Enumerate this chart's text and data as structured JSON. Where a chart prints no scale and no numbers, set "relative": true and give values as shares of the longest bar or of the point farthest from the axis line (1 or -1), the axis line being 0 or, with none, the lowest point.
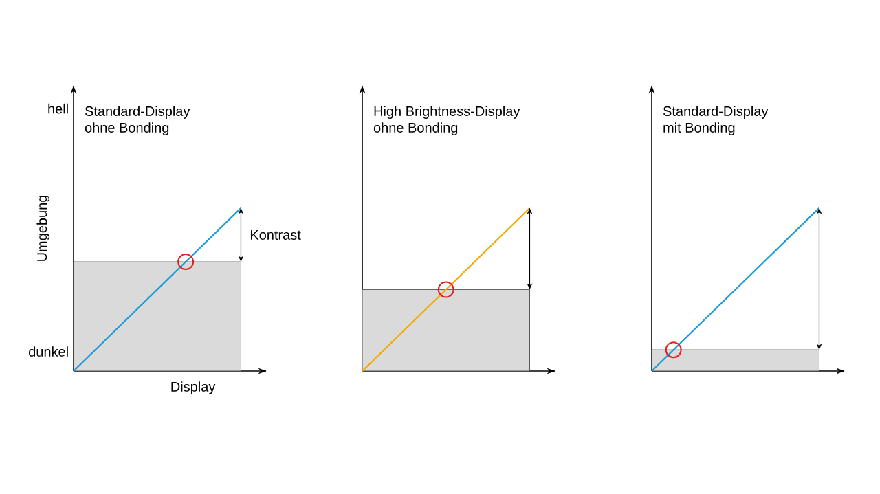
{
  "chart_data": [
    {
      "type": "line",
      "title": "Standard-Display",
      "subtitle": "ohne Bonding",
      "xlabel": "Display",
      "ylabel": "Umgebung",
      "relative": true,
      "categories": [
        null,
        null
      ],
      "annotations": [
        "hell",
        "dunkel",
        "Kontrast"
      ],
      "series": [
        {
          "type": "area",
          "color": "#555555",
          "values": [
            0.67,
            0.67
          ]
        },
        {
          "color": "#1a9ad6",
          "values": [
            0,
            1
          ]
        }
      ]
    },
    {
      "type": "line",
      "title": "High Brightness-Display",
      "subtitle": "ohne Bonding",
      "relative": true,
      "categories": [
        null,
        null
      ],
      "series": [
        {
          "type": "area",
          "color": "#555555",
          "values": [
            0.5,
            0.5
          ]
        },
        {
          "color": "#f5a800",
          "values": [
            0,
            1
          ]
        }
      ]
    },
    {
      "type": "line",
      "title": "Standard-Display",
      "subtitle": "mit Bonding",
      "relative": true,
      "categories": [
        null,
        null
      ],
      "series": [
        {
          "type": "area",
          "color": "#555555",
          "values": [
            0.13,
            0.13
          ]
        },
        {
          "color": "#1a9ad6",
          "values": [
            0,
            1
          ]
        }
      ]
    }
  ]
}
